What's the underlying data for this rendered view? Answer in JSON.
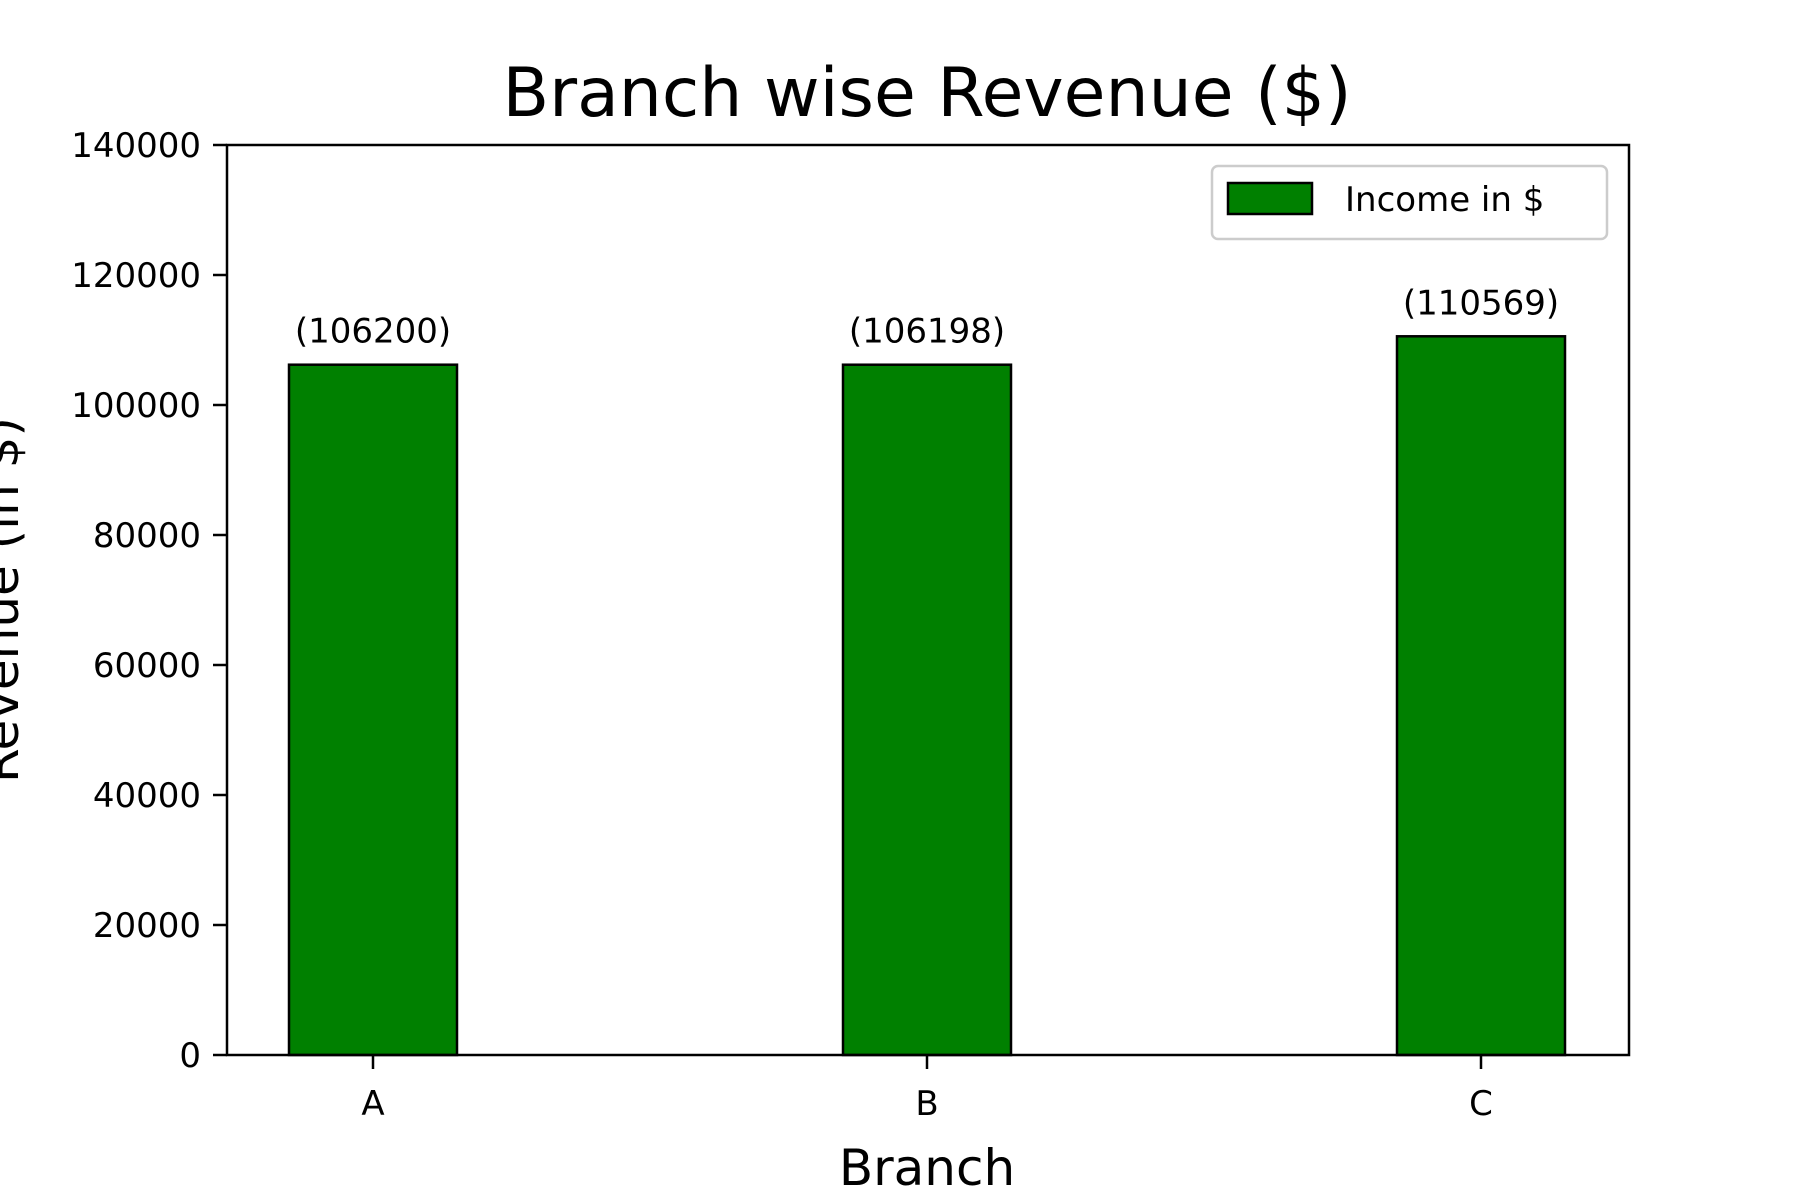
{
  "chart_data": {
    "type": "bar",
    "title": "Branch wise Revenue ($)",
    "xlabel": "Branch",
    "ylabel": "Revenue (in $)",
    "categories": [
      "A",
      "B",
      "C"
    ],
    "series": [
      {
        "name": "Income in $",
        "values": [
          106200,
          106198,
          110569
        ],
        "color": "#008000",
        "edge_color": "#000000"
      }
    ],
    "data_labels": [
      "(106200)",
      "(106198)",
      "(110569)"
    ],
    "ylim": [
      0,
      140000
    ],
    "yticks": [
      0,
      20000,
      40000,
      60000,
      80000,
      100000,
      120000,
      140000
    ],
    "grid": false,
    "legend_position": "top-right"
  }
}
